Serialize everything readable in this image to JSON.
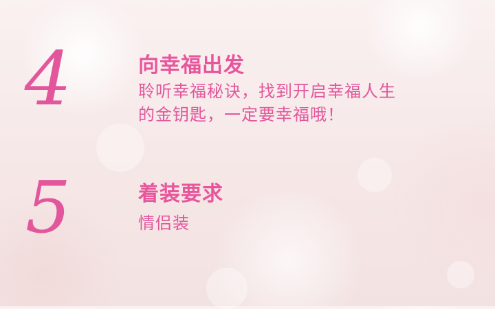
{
  "sections": [
    {
      "number": "4",
      "title": "向幸福出发",
      "lines": [
        "聆听幸福秘诀，找到开启幸福人生",
        "的金钥匙，一定要幸福哦！"
      ]
    },
    {
      "number": "5",
      "title": "着装要求",
      "lines": [
        "情侣装"
      ]
    }
  ],
  "colors": {
    "accent": "#e2579c",
    "background": "#f6e7e7"
  }
}
